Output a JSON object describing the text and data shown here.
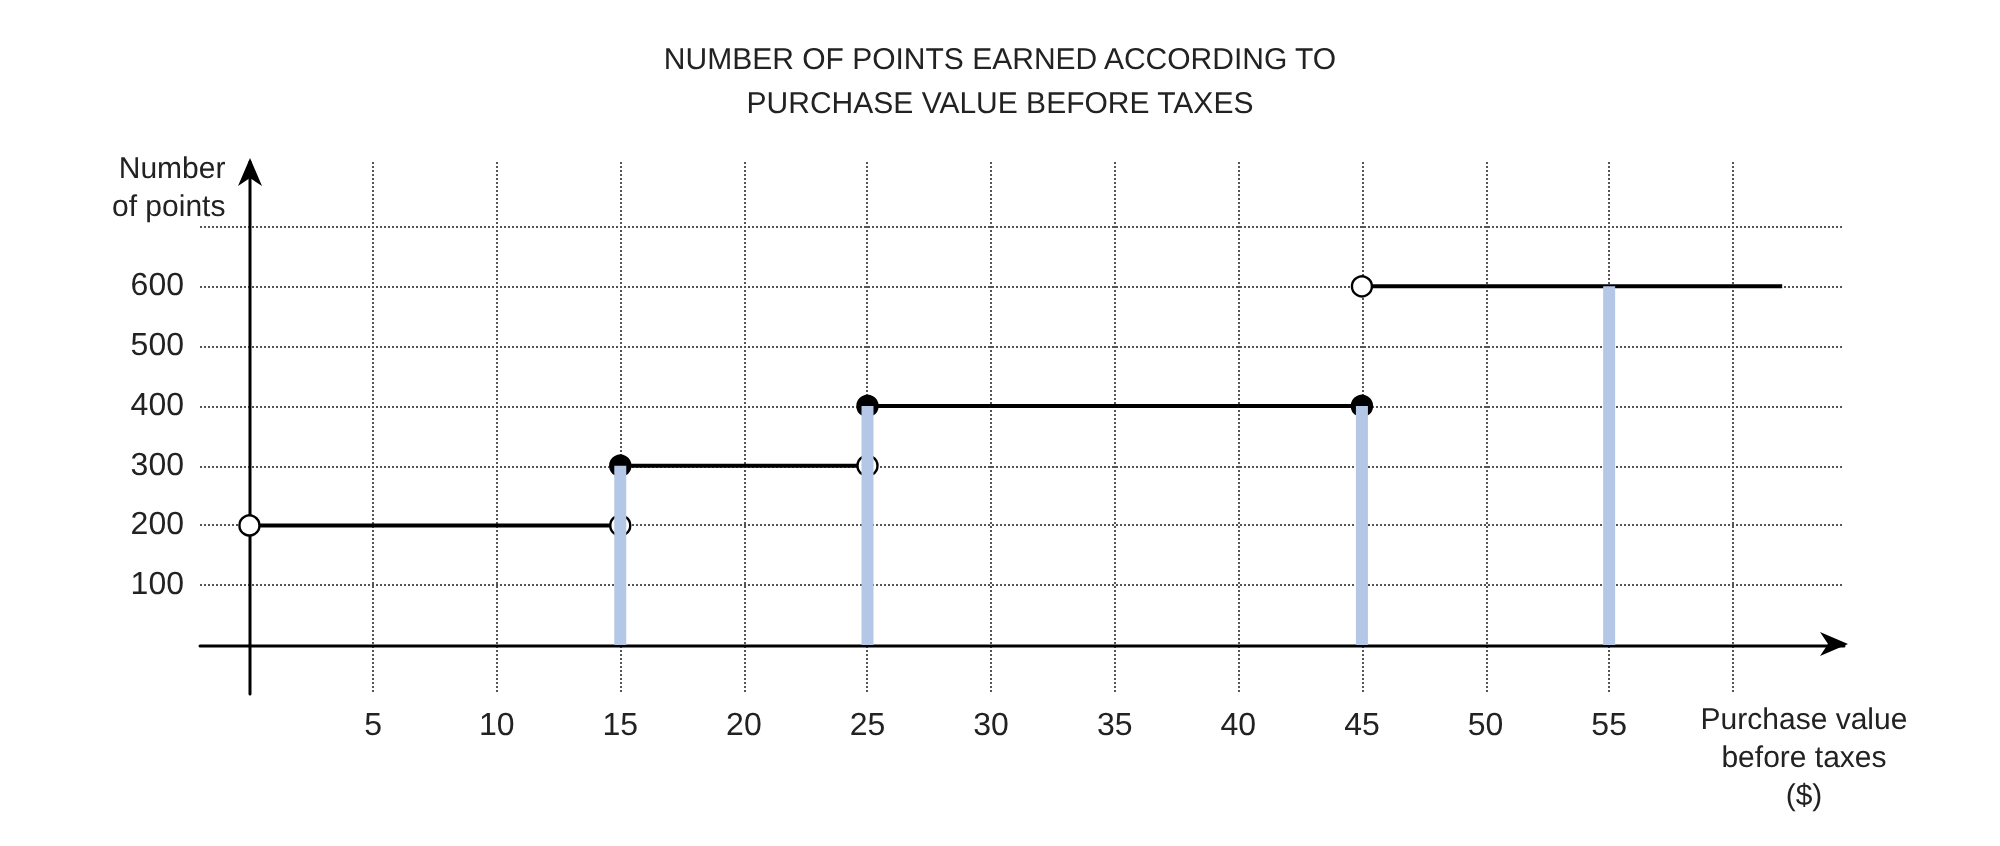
{
  "chart_data": {
    "type": "line",
    "title": "NUMBER OF POINTS EARNED ACCORDING TO\nPURCHASE VALUE BEFORE TAXES",
    "xlabel": "Purchase value\nbefore taxes\n($)",
    "ylabel": "Number\nof points",
    "xlim": [
      -2,
      64.5
    ],
    "xticks": [
      5,
      10,
      15,
      20,
      25,
      30,
      35,
      40,
      45,
      50,
      55,
      {
        "value": 60,
        "label": null
      }
    ],
    "ylim": [
      -82,
      808
    ],
    "yticks": [
      100,
      200,
      300,
      400,
      500,
      600,
      {
        "value": 700,
        "label": null
      }
    ],
    "grid": true,
    "series": [
      {
        "type": "bar",
        "color": "#b4c7e7",
        "x": [
          15,
          25,
          45,
          55
        ],
        "values": [
          300,
          400,
          400,
          600
        ]
      },
      {
        "color": "#000000",
        "x": [
          0,
          15
        ],
        "values": [
          200,
          200
        ]
      },
      {
        "color": "#000000",
        "x": [
          15,
          25
        ],
        "values": [
          300,
          300
        ]
      },
      {
        "color": "#000000",
        "x": [
          25,
          45
        ],
        "values": [
          400,
          400
        ]
      },
      {
        "color": "#000000",
        "x": [
          45,
          62
        ],
        "values": [
          600,
          600
        ]
      },
      {
        "type": "scatter",
        "color": "#000000",
        "x": [
          15,
          25,
          45
        ],
        "values": [
          300,
          400,
          400
        ]
      },
      {
        "type": "scatter",
        "color": "#ffffff",
        "x": [
          0,
          15,
          25,
          45
        ],
        "values": [
          200,
          200,
          300,
          600
        ]
      }
    ]
  }
}
